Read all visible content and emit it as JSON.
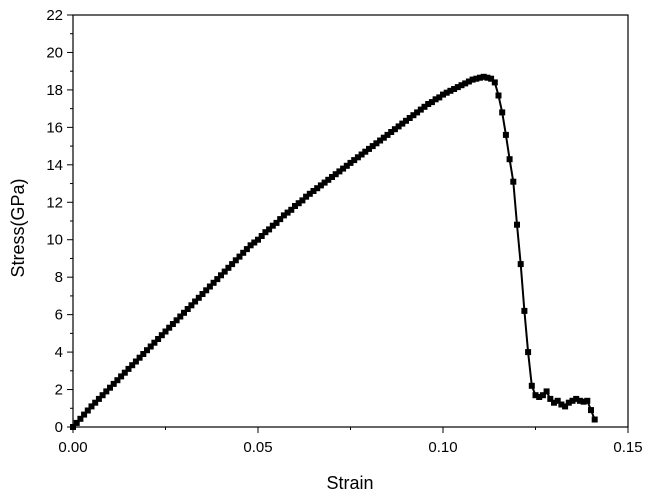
{
  "chart_data": {
    "type": "scatter",
    "title": "",
    "xlabel": "Strain",
    "ylabel": "Stress(GPa)",
    "xlim": [
      0.0,
      0.15
    ],
    "ylim": [
      0,
      22
    ],
    "xticks": [
      0.0,
      0.05,
      0.1,
      0.15
    ],
    "xtick_labels": [
      "0.00",
      "0.05",
      "0.10",
      "0.15"
    ],
    "yticks": [
      0,
      2,
      4,
      6,
      8,
      10,
      12,
      14,
      16,
      18,
      20,
      22
    ],
    "ytick_labels": [
      "0",
      "2",
      "4",
      "6",
      "8",
      "10",
      "12",
      "14",
      "16",
      "18",
      "20",
      "22"
    ],
    "grid": false,
    "legend": "none",
    "marker": "square",
    "color": "#000000",
    "series": [
      {
        "x": [
          0.0,
          0.001,
          0.002,
          0.003,
          0.004,
          0.005,
          0.006,
          0.007,
          0.008,
          0.009,
          0.01,
          0.011,
          0.012,
          0.013,
          0.014,
          0.015,
          0.016,
          0.017,
          0.018,
          0.019,
          0.02,
          0.021,
          0.022,
          0.023,
          0.024,
          0.025,
          0.026,
          0.027,
          0.028,
          0.029,
          0.03,
          0.031,
          0.032,
          0.033,
          0.034,
          0.035,
          0.036,
          0.037,
          0.038,
          0.039,
          0.04,
          0.041,
          0.042,
          0.043,
          0.044,
          0.045,
          0.046,
          0.047,
          0.048,
          0.049,
          0.05,
          0.051,
          0.052,
          0.053,
          0.054,
          0.055,
          0.056,
          0.057,
          0.058,
          0.059,
          0.06,
          0.061,
          0.062,
          0.063,
          0.064,
          0.065,
          0.066,
          0.067,
          0.068,
          0.069,
          0.07,
          0.071,
          0.072,
          0.073,
          0.074,
          0.075,
          0.076,
          0.077,
          0.078,
          0.079,
          0.08,
          0.081,
          0.082,
          0.083,
          0.084,
          0.085,
          0.086,
          0.087,
          0.088,
          0.089,
          0.09,
          0.091,
          0.092,
          0.093,
          0.094,
          0.095,
          0.096,
          0.097,
          0.098,
          0.099,
          0.1,
          0.101,
          0.102,
          0.103,
          0.104,
          0.105,
          0.106,
          0.107,
          0.108,
          0.109,
          0.11,
          0.111,
          0.112,
          0.113,
          0.114,
          0.115,
          0.116,
          0.117,
          0.118,
          0.119,
          0.12,
          0.121,
          0.122,
          0.123,
          0.124,
          0.125,
          0.126,
          0.127,
          0.128,
          0.129,
          0.13,
          0.131,
          0.132,
          0.133,
          0.134,
          0.135,
          0.136,
          0.137,
          0.138,
          0.139,
          0.14,
          0.141
        ],
        "y": [
          0.0,
          0.22,
          0.44,
          0.66,
          0.88,
          1.1,
          1.3,
          1.5,
          1.7,
          1.9,
          2.1,
          2.3,
          2.5,
          2.7,
          2.9,
          3.1,
          3.3,
          3.5,
          3.7,
          3.9,
          4.1,
          4.3,
          4.5,
          4.7,
          4.9,
          5.1,
          5.3,
          5.5,
          5.7,
          5.9,
          6.1,
          6.3,
          6.5,
          6.7,
          6.9,
          7.1,
          7.3,
          7.5,
          7.7,
          7.9,
          8.1,
          8.3,
          8.5,
          8.7,
          8.9,
          9.1,
          9.3,
          9.5,
          9.7,
          9.85,
          10.0,
          10.2,
          10.4,
          10.55,
          10.75,
          10.9,
          11.1,
          11.3,
          11.45,
          11.6,
          11.8,
          11.95,
          12.1,
          12.3,
          12.45,
          12.6,
          12.75,
          12.9,
          13.05,
          13.2,
          13.35,
          13.5,
          13.65,
          13.8,
          13.95,
          14.1,
          14.25,
          14.4,
          14.55,
          14.7,
          14.85,
          15.0,
          15.15,
          15.3,
          15.45,
          15.6,
          15.75,
          15.9,
          16.05,
          16.2,
          16.35,
          16.5,
          16.65,
          16.8,
          16.95,
          17.1,
          17.25,
          17.35,
          17.5,
          17.6,
          17.75,
          17.85,
          17.95,
          18.05,
          18.15,
          18.25,
          18.35,
          18.45,
          18.55,
          18.6,
          18.65,
          18.7,
          18.65,
          18.6,
          18.4,
          17.7,
          16.8,
          15.6,
          14.3,
          13.1,
          10.8,
          8.7,
          6.2,
          4.0,
          2.2,
          1.7,
          1.6,
          1.7,
          1.9,
          1.5,
          1.3,
          1.4,
          1.2,
          1.1,
          1.3,
          1.4,
          1.5,
          1.4,
          1.35,
          1.4,
          0.9,
          0.4
        ]
      }
    ]
  }
}
